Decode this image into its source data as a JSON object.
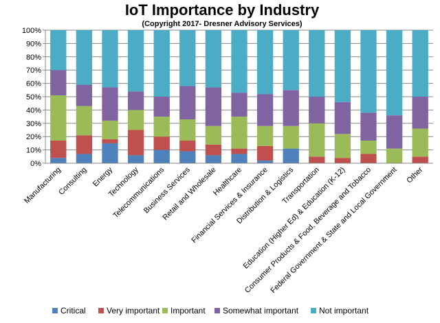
{
  "chart_data": {
    "type": "bar",
    "stacked": true,
    "percent": true,
    "title": "IoT Importance by Industry",
    "subtitle": "(Copyright 2017- Dresner Advisory Services)",
    "ylim": [
      0,
      100
    ],
    "yticks": [
      "0%",
      "10%",
      "20%",
      "30%",
      "40%",
      "50%",
      "60%",
      "70%",
      "80%",
      "90%",
      "100%"
    ],
    "grid": true,
    "legend_position": "bottom",
    "categories": [
      "Manufacturing",
      "Consulting",
      "Energy",
      "Technology",
      "Telecommunications",
      "Business Services",
      "Retail and Wholesale",
      "Healthcare",
      "Financial Services & Insurance",
      "Distribution & Logistics",
      "Transportation",
      "Education (Higher Ed) & Education (K-12)",
      "Consumer Products & Food, Beverage and Tobacco",
      "Federal Government & State and Local Government",
      "Other"
    ],
    "series": [
      {
        "name": "Critical",
        "color": "#4f81bd",
        "values": [
          4,
          7,
          15,
          6,
          10,
          9,
          6,
          7,
          2,
          11,
          0,
          0,
          0,
          0,
          0
        ]
      },
      {
        "name": "Very important",
        "color": "#c0504d",
        "values": [
          13,
          14,
          3,
          19,
          10,
          8,
          8,
          4,
          11,
          0,
          5,
          4,
          7,
          0,
          5
        ]
      },
      {
        "name": "Important",
        "color": "#9bbb59",
        "values": [
          34,
          22,
          14,
          15,
          15,
          16,
          14,
          24,
          15,
          17,
          25,
          18,
          10,
          11,
          21
        ]
      },
      {
        "name": "Somewhat important",
        "color": "#8064a2",
        "values": [
          19,
          16,
          25,
          14,
          15,
          25,
          29,
          18,
          24,
          27,
          20,
          24,
          21,
          25,
          24
        ]
      },
      {
        "name": "Not important",
        "color": "#4bacc6",
        "values": [
          30,
          41,
          43,
          46,
          50,
          42,
          43,
          47,
          48,
          45,
          50,
          54,
          62,
          64,
          50
        ]
      }
    ]
  }
}
